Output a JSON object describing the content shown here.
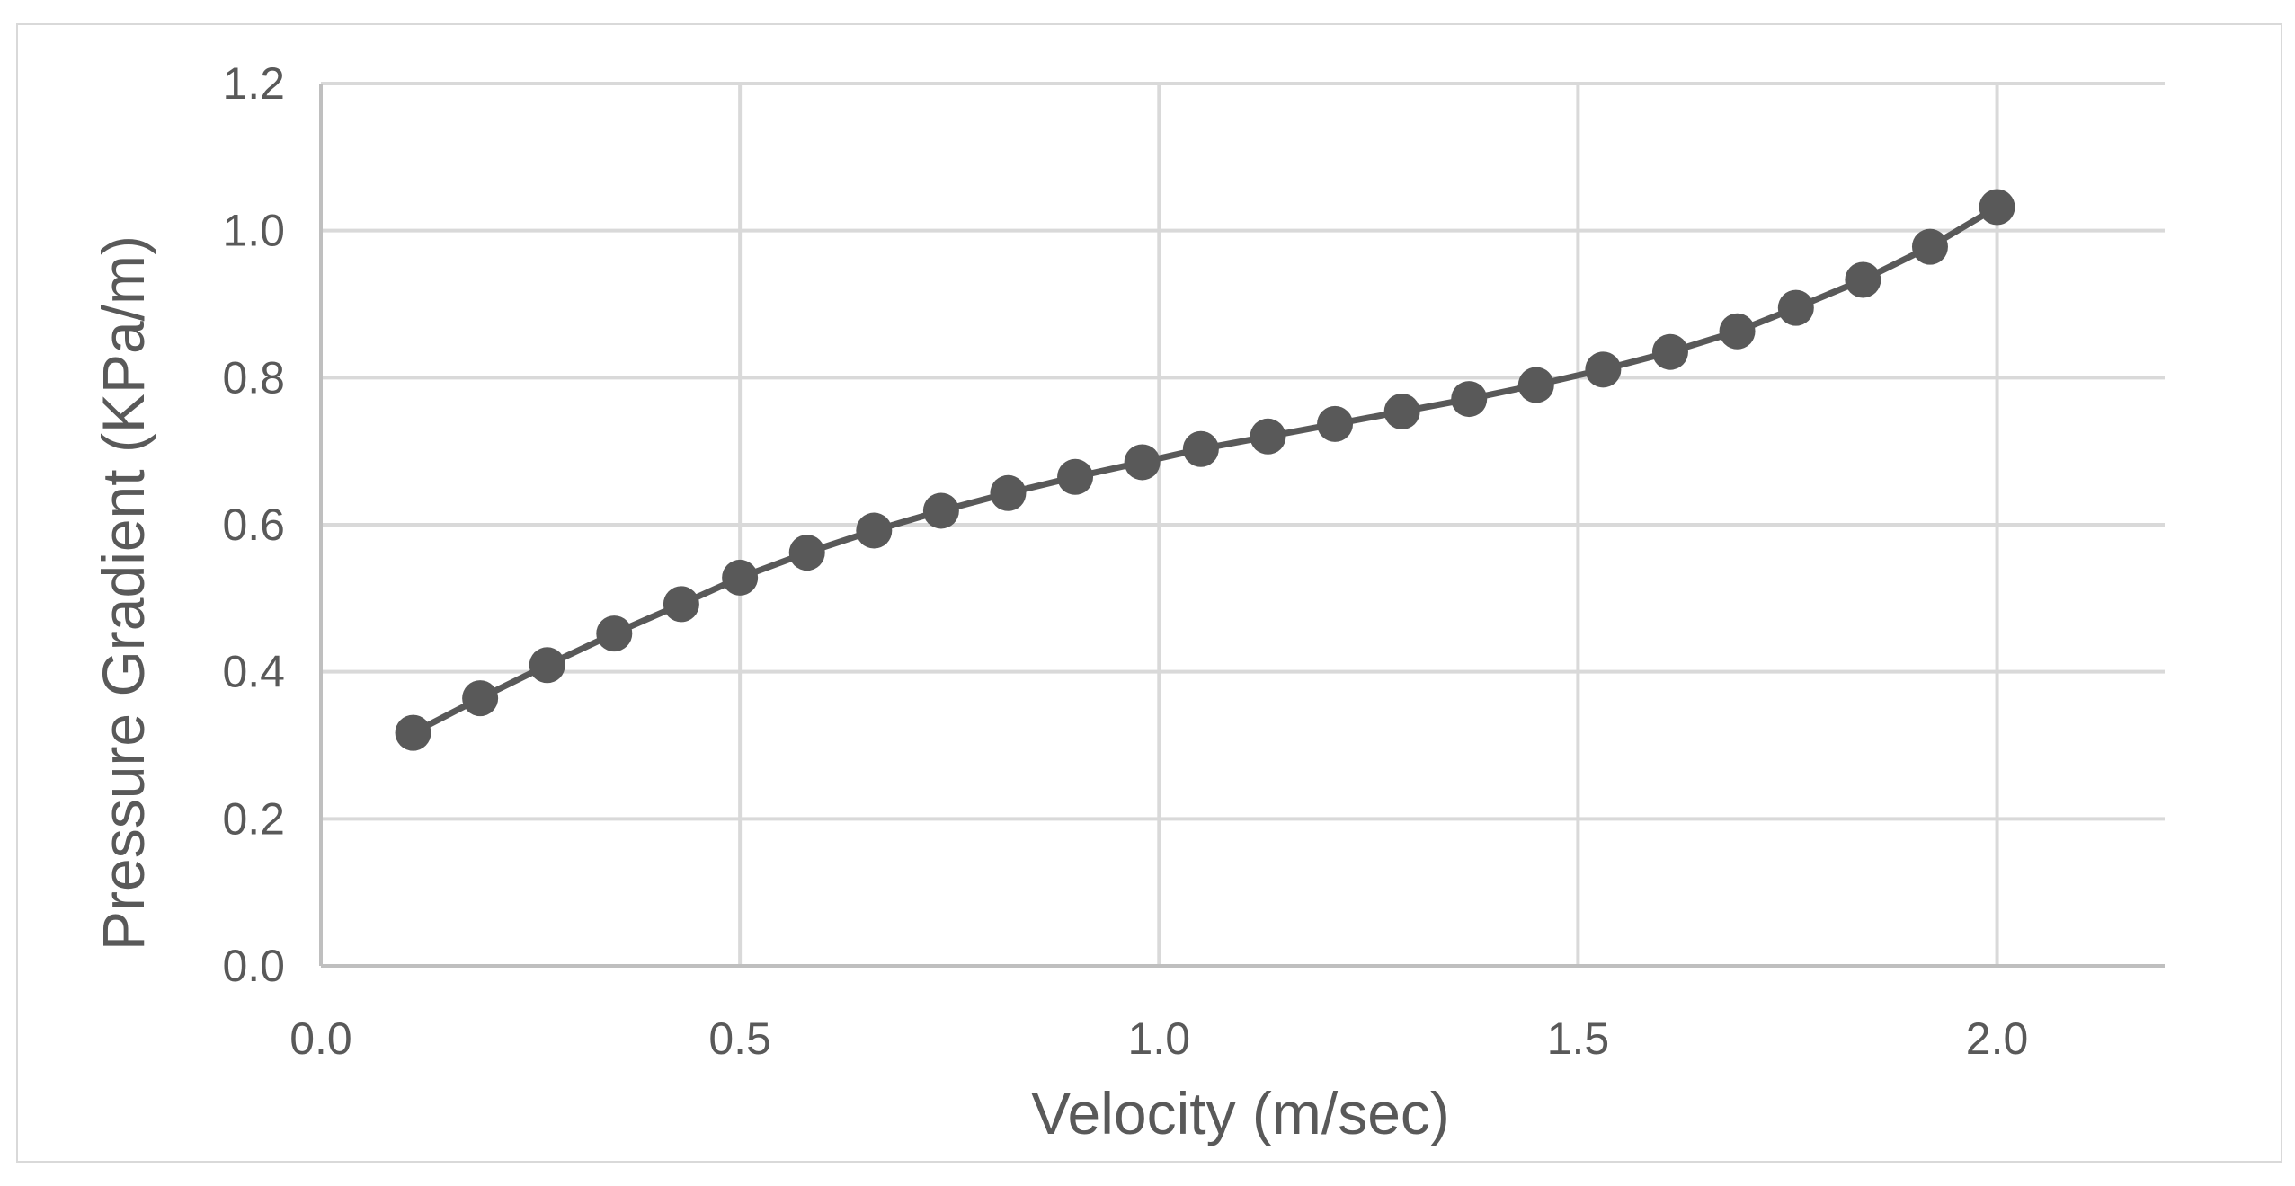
{
  "chart_data": {
    "type": "scatter",
    "title": "",
    "xlabel": "Velocity (m/sec)",
    "ylabel": "Pressure Gradient (KPa/m)",
    "xlim": [
      0.0,
      2.2
    ],
    "ylim": [
      0.0,
      1.2
    ],
    "grid": true,
    "legend": "none",
    "x_ticks": [
      0.0,
      0.5,
      1.0,
      1.5,
      2.0
    ],
    "x_tick_labels": [
      "0.0",
      "0.5",
      "1.0",
      "1.5",
      "2.0"
    ],
    "y_ticks": [
      0.0,
      0.2,
      0.4,
      0.6,
      0.8,
      1.0,
      1.2
    ],
    "y_tick_labels": [
      "0.0",
      "0.2",
      "0.4",
      "0.6",
      "0.8",
      "1.0",
      "1.2"
    ],
    "series": [
      {
        "name": "Pressure Gradient",
        "color": "#595959",
        "x": [
          0.11,
          0.19,
          0.27,
          0.35,
          0.43,
          0.5,
          0.58,
          0.66,
          0.74,
          0.82,
          0.9,
          0.98,
          1.05,
          1.13,
          1.21,
          1.29,
          1.37,
          1.45,
          1.53,
          1.61,
          1.69,
          1.76,
          1.84,
          1.92,
          2.0
        ],
        "y": [
          0.317,
          0.364,
          0.409,
          0.452,
          0.492,
          0.528,
          0.562,
          0.592,
          0.619,
          0.643,
          0.665,
          0.685,
          0.703,
          0.72,
          0.737,
          0.754,
          0.771,
          0.79,
          0.811,
          0.835,
          0.863,
          0.895,
          0.933,
          0.978,
          1.032
        ]
      }
    ]
  },
  "colors": {
    "grid": "#d9d9d9",
    "axis": "#bfbfbf",
    "text": "#595959",
    "series": "#595959"
  }
}
